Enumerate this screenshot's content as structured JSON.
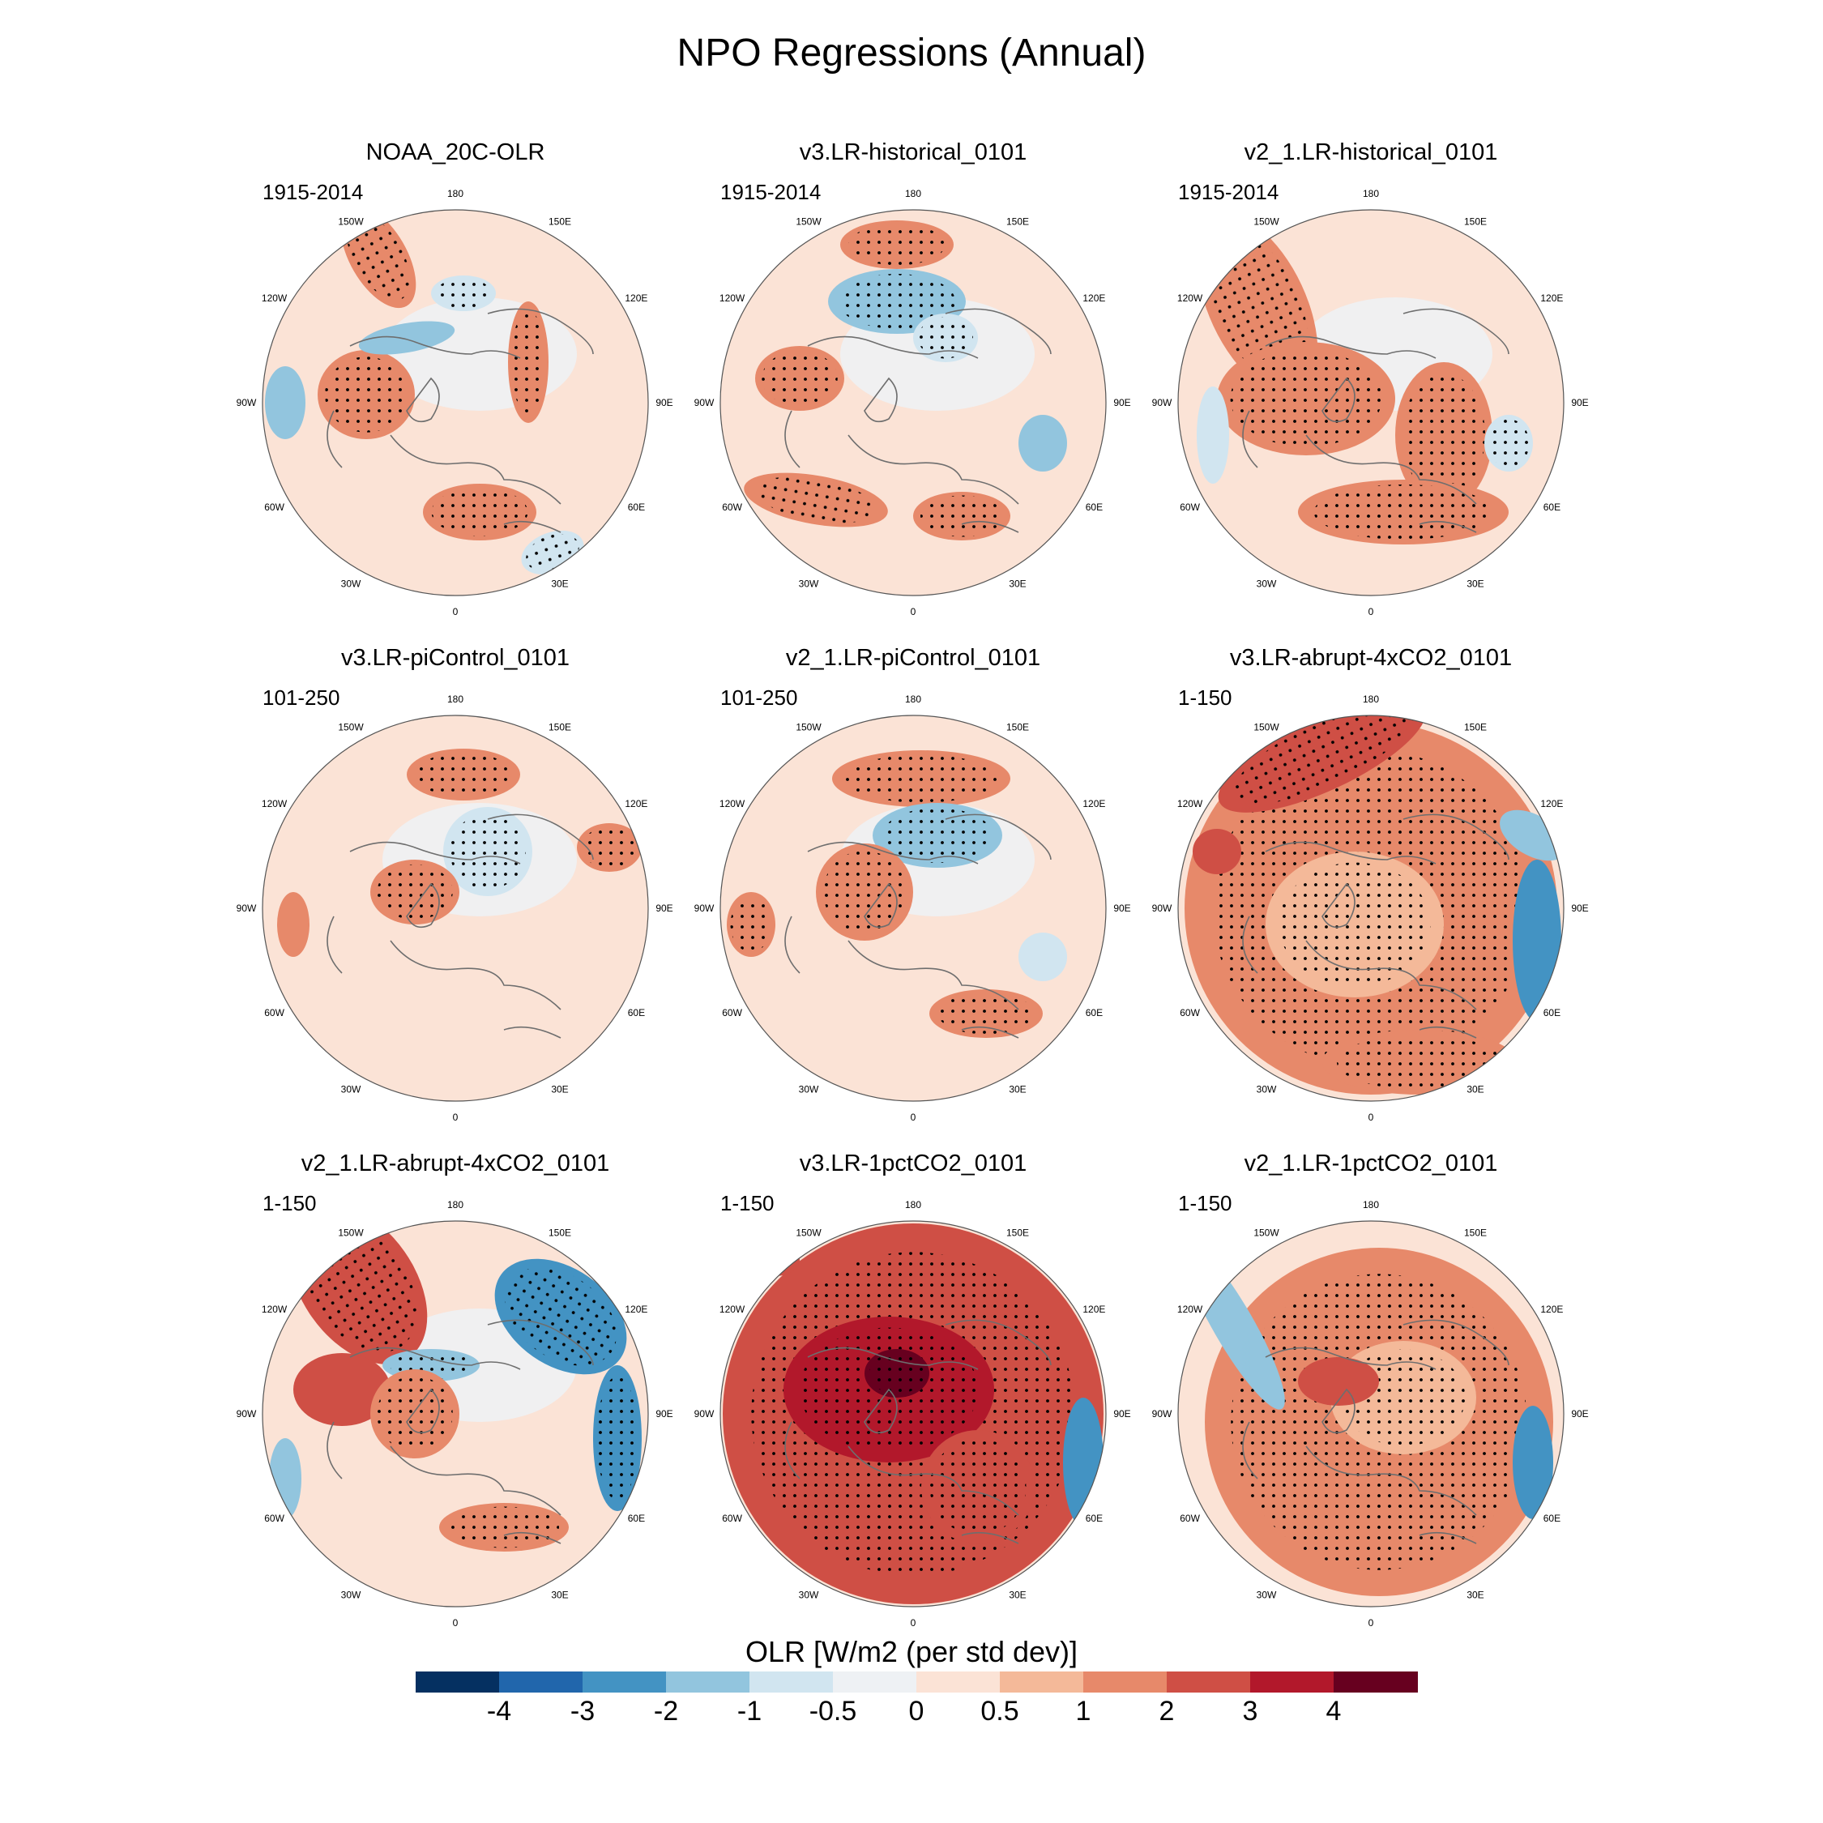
{
  "title": "NPO Regressions (Annual)",
  "chart_data": {
    "type": "polar-stereographic contour map panels",
    "title": "NPO Regressions (Annual)",
    "variable": "OLR",
    "units_label": "OLR [W/m2 (per std dev)]",
    "stippling": "black dots mark statistically significant regions",
    "longitude_labels": [
      "180",
      "150E",
      "120E",
      "90E",
      "60E",
      "30E",
      "0",
      "30W",
      "60W",
      "90W",
      "120W",
      "150W"
    ],
    "colorbar": {
      "levels": [
        "-4",
        "-3",
        "-2",
        "-1",
        "-0.5",
        "0",
        "0.5",
        "1",
        "2",
        "3",
        "4"
      ],
      "colors": [
        "#053061",
        "#2166ac",
        "#4393c3",
        "#92c5de",
        "#d1e5f0",
        "#eef1f4",
        "#fbe3d6",
        "#f4b999",
        "#e7896a",
        "#cf4f45",
        "#b2182b",
        "#67001f"
      ]
    },
    "panels": [
      {
        "title": "NOAA_20C-OLR",
        "period": "1915-2014"
      },
      {
        "title": "v3.LR-historical_0101",
        "period": "1915-2014"
      },
      {
        "title": "v2_1.LR-historical_0101",
        "period": "1915-2014"
      },
      {
        "title": "v3.LR-piControl_0101",
        "period": "101-250"
      },
      {
        "title": "v2_1.LR-piControl_0101",
        "period": "101-250"
      },
      {
        "title": "v3.LR-abrupt-4xCO2_0101",
        "period": "1-150"
      },
      {
        "title": "v2_1.LR-abrupt-4xCO2_0101",
        "period": "1-150"
      },
      {
        "title": "v3.LR-1pctCO2_0101",
        "period": "1-150"
      },
      {
        "title": "v2_1.LR-1pctCO2_0101",
        "period": "1-150"
      }
    ]
  }
}
